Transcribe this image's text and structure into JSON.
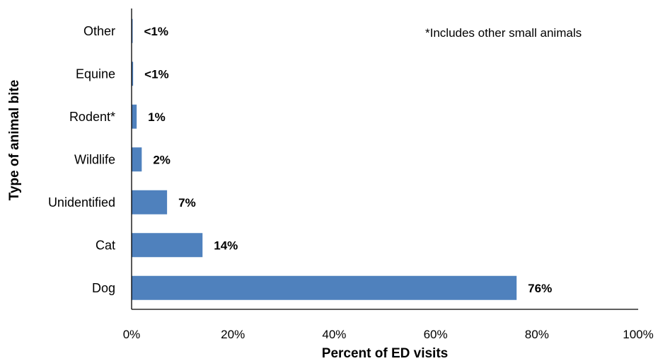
{
  "chart_data": {
    "type": "bar",
    "orientation": "horizontal",
    "categories": [
      "Dog",
      "Cat",
      "Unidentified",
      "Wildlife",
      "Rodent*",
      "Equine",
      "Other"
    ],
    "values": [
      76,
      14,
      7,
      2,
      1,
      0.3,
      0.1
    ],
    "value_labels": [
      "76%",
      "14%",
      "7%",
      "2%",
      "1%",
      "<1%",
      "<1%"
    ],
    "title": "",
    "xlabel": "Percent of ED visits",
    "ylabel": "Type of animal bite",
    "xlim": [
      0,
      100
    ],
    "x_ticks": [
      0,
      20,
      40,
      60,
      80,
      100
    ],
    "x_tick_labels": [
      "0%",
      "20%",
      "40%",
      "60%",
      "80%",
      "100%"
    ],
    "grid": false,
    "bar_color": "#4f81bd",
    "annotation": "*Includes other small animals"
  }
}
